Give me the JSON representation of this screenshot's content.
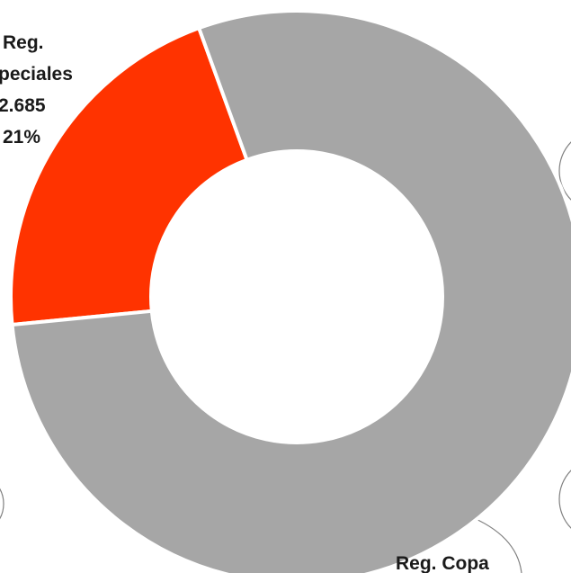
{
  "chart_data": {
    "type": "pie",
    "variant": "donut",
    "slices": [
      {
        "label_lines": [
          "Reg.",
          "peciales",
          "2.685",
          "21%"
        ],
        "value": 2685,
        "percent": 21,
        "color": "#FF3300"
      },
      {
        "label_lines": [
          "Reg. Copa"
        ],
        "percent": 79,
        "color": "#A6A6A6"
      }
    ]
  },
  "colors": {
    "background": "#FFFFFF",
    "separator": "#FFFFFF",
    "callout_outline": "#7F7F7F"
  }
}
